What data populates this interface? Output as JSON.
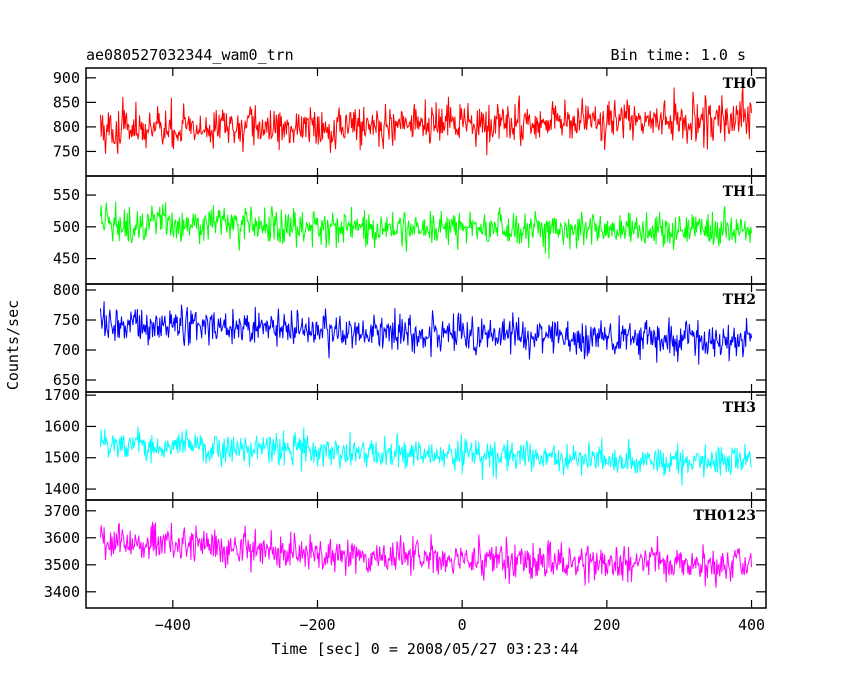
{
  "chart_data": {
    "type": "line",
    "title": "ae080527032344_wam0_trn",
    "subtitle": "Bin time: 1.0 s",
    "xlabel": "Time [sec] 0 = 2008/05/27 03:23:44",
    "ylabel": "Counts/sec",
    "xlim": [
      -520,
      420
    ],
    "xticks": [
      -400,
      -200,
      0,
      200,
      400
    ],
    "x_sampling": {
      "start": -500,
      "end": 400,
      "step": 1
    },
    "grid": false,
    "series": [
      {
        "name": "TH0",
        "color": "#ff0000",
        "ylim": [
          700,
          920
        ],
        "yticks": [
          750,
          800,
          850,
          900
        ],
        "x": [
          -500,
          -400,
          -300,
          -200,
          -100,
          0,
          100,
          200,
          300,
          400
        ],
        "y": [
          795,
          795,
          798,
          800,
          805,
          805,
          808,
          810,
          815,
          815
        ],
        "noise": 38
      },
      {
        "name": "TH1",
        "color": "#00ff00",
        "ylim": [
          410,
          580
        ],
        "yticks": [
          450,
          500,
          550
        ],
        "x": [
          -500,
          -400,
          -300,
          -200,
          -100,
          0,
          100,
          200,
          300,
          400
        ],
        "y": [
          505,
          505,
          503,
          500,
          500,
          498,
          497,
          496,
          496,
          495
        ],
        "noise": 26
      },
      {
        "name": "TH2",
        "color": "#0000ff",
        "ylim": [
          630,
          810
        ],
        "yticks": [
          650,
          700,
          750,
          800
        ],
        "x": [
          -500,
          -400,
          -300,
          -200,
          -100,
          0,
          100,
          200,
          300,
          400
        ],
        "y": [
          745,
          740,
          738,
          732,
          728,
          725,
          722,
          720,
          718,
          718
        ],
        "noise": 28
      },
      {
        "name": "TH3",
        "color": "#00ffff",
        "ylim": [
          1365,
          1710
        ],
        "yticks": [
          1400,
          1500,
          1600,
          1700
        ],
        "x": [
          -500,
          -400,
          -300,
          -200,
          -100,
          0,
          100,
          200,
          300,
          400
        ],
        "y": [
          1545,
          1540,
          1530,
          1520,
          1510,
          1505,
          1500,
          1495,
          1490,
          1490
        ],
        "noise": 45
      },
      {
        "name": "TH0123",
        "color": "#ff00ff",
        "ylim": [
          3340,
          3740
        ],
        "yticks": [
          3400,
          3500,
          3600,
          3700
        ],
        "x": [
          -500,
          -400,
          -300,
          -200,
          -100,
          0,
          100,
          200,
          300,
          400
        ],
        "y": [
          3590,
          3580,
          3560,
          3540,
          3530,
          3520,
          3515,
          3510,
          3510,
          3505
        ],
        "noise": 60
      }
    ]
  }
}
